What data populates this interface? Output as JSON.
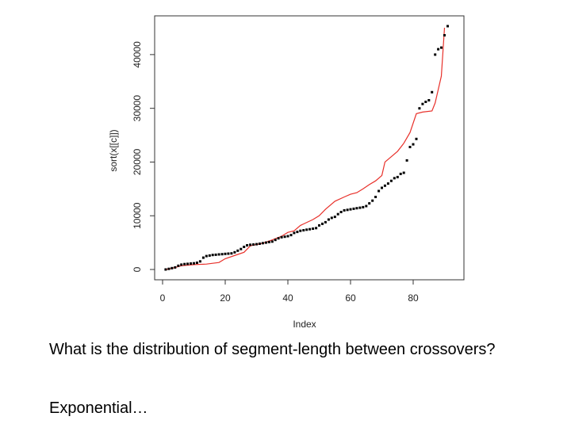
{
  "chart_data": {
    "type": "scatter",
    "xlabel": "Index",
    "ylabel": "sort(x[[c]])",
    "xlim": [
      0,
      95
    ],
    "ylim": [
      0,
      46000
    ],
    "x_ticks": [
      0,
      20,
      40,
      60,
      80
    ],
    "y_ticks": [
      0,
      10000,
      20000,
      30000,
      40000
    ],
    "grid": false,
    "series": [
      {
        "marker": "square",
        "color": "#000000",
        "values": [
          0,
          120,
          250,
          380,
          700,
          900,
          1000,
          1050,
          1100,
          1150,
          1250,
          1500,
          2200,
          2500,
          2600,
          2700,
          2750,
          2800,
          2850,
          2900,
          2950,
          3000,
          3200,
          3500,
          3800,
          4200,
          4500,
          4600,
          4650,
          4700,
          4800,
          4900,
          5000,
          5100,
          5200,
          5500,
          5800,
          6000,
          6100,
          6200,
          6400,
          6800,
          7000,
          7200,
          7300,
          7400,
          7500,
          7600,
          7700,
          8200,
          8500,
          8800,
          9300,
          9600,
          9800,
          10300,
          10700,
          11000,
          11100,
          11200,
          11300,
          11400,
          11500,
          11600,
          11800,
          12300,
          12800,
          13500,
          14600,
          15200,
          15600,
          16000,
          16500,
          17000,
          17200,
          17800,
          18000,
          20300,
          22800,
          23300,
          24300,
          30000,
          30800,
          31200,
          31500,
          33000,
          40000,
          41000,
          41300,
          43600,
          45300
        ]
      },
      {
        "color": "#e8302a",
        "line_points": [
          [
            1,
            0
          ],
          [
            3,
            200
          ],
          [
            6,
            700
          ],
          [
            10,
            900
          ],
          [
            14,
            1000
          ],
          [
            18,
            1300
          ],
          [
            20,
            2000
          ],
          [
            24,
            2800
          ],
          [
            26,
            3200
          ],
          [
            28,
            4400
          ],
          [
            32,
            4900
          ],
          [
            35,
            5500
          ],
          [
            38,
            6200
          ],
          [
            40,
            6900
          ],
          [
            42,
            7200
          ],
          [
            44,
            8200
          ],
          [
            48,
            9300
          ],
          [
            50,
            10000
          ],
          [
            52,
            11200
          ],
          [
            55,
            12700
          ],
          [
            58,
            13500
          ],
          [
            60,
            14000
          ],
          [
            62,
            14300
          ],
          [
            64,
            15000
          ],
          [
            66,
            15800
          ],
          [
            68,
            16500
          ],
          [
            70,
            17500
          ],
          [
            71,
            20000
          ],
          [
            73,
            21000
          ],
          [
            75,
            22000
          ],
          [
            77,
            23500
          ],
          [
            79,
            25500
          ],
          [
            81,
            29000
          ],
          [
            83,
            29300
          ],
          [
            86,
            29500
          ],
          [
            87,
            31000
          ],
          [
            89,
            36000
          ],
          [
            90,
            45000
          ]
        ]
      }
    ]
  },
  "text": {
    "question": "What is the distribution of segment-length between crossovers?",
    "answer": "Exponential…"
  },
  "colors": {
    "points": "#000000",
    "curve": "#e8302a",
    "axes": "#333333"
  }
}
